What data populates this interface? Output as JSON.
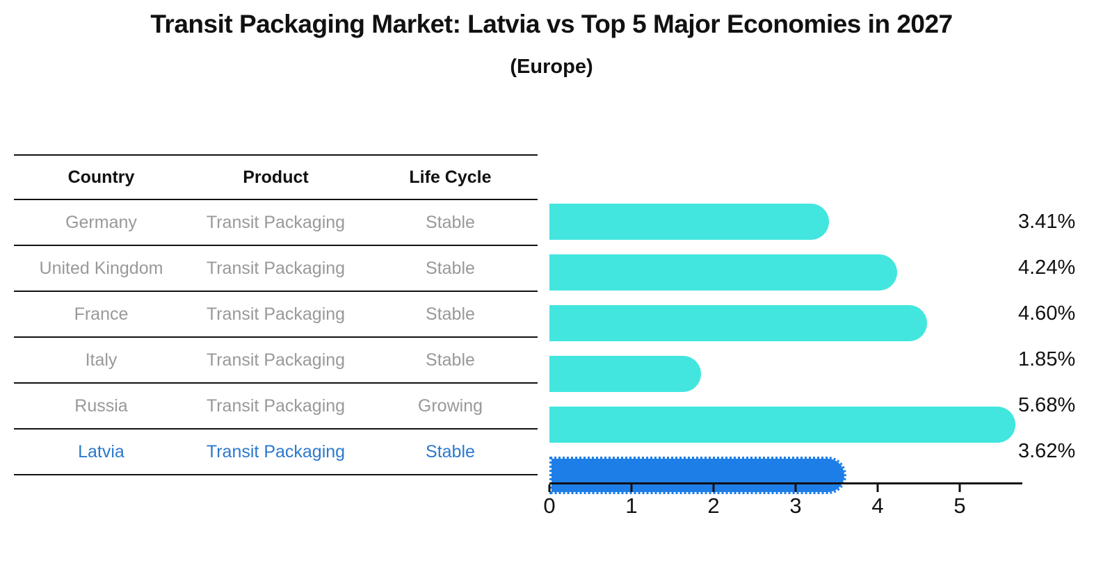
{
  "chart_data": {
    "type": "bar",
    "title": "Transit Packaging Market: Latvia vs Top 5 Major Economies in 2027",
    "subtitle": "(Europe)",
    "table_columns": [
      "Country",
      "Product",
      "Life Cycle"
    ],
    "rows": [
      {
        "country": "Germany",
        "product": "Transit Packaging",
        "life_cycle": "Stable",
        "value": 3.41,
        "value_label": "3.41%",
        "highlight": false
      },
      {
        "country": "United Kingdom",
        "product": "Transit Packaging",
        "life_cycle": "Stable",
        "value": 4.24,
        "value_label": "4.24%",
        "highlight": false
      },
      {
        "country": "France",
        "product": "Transit Packaging",
        "life_cycle": "Stable",
        "value": 4.6,
        "value_label": "4.60%",
        "highlight": false
      },
      {
        "country": "Italy",
        "product": "Transit Packaging",
        "life_cycle": "Stable",
        "value": 1.85,
        "value_label": "1.85%",
        "highlight": false
      },
      {
        "country": "Russia",
        "product": "Transit Packaging",
        "life_cycle": "Growing",
        "value": 5.68,
        "value_label": "5.68%",
        "highlight": false
      },
      {
        "country": "Latvia",
        "product": "Transit Packaging",
        "life_cycle": "Stable",
        "value": 3.62,
        "value_label": "3.62%",
        "highlight": true
      }
    ],
    "xticks": [
      0,
      1,
      2,
      3,
      4,
      5
    ],
    "xlim": [
      0,
      5.76
    ],
    "grid": false,
    "legend": "none",
    "colors": {
      "bar": "#42E6DE",
      "highlight_bar": "#1E7EE8",
      "highlight_text": "#2B79CE",
      "table_text": "#999999",
      "header_text": "#111111",
      "axis": "#111111"
    }
  }
}
